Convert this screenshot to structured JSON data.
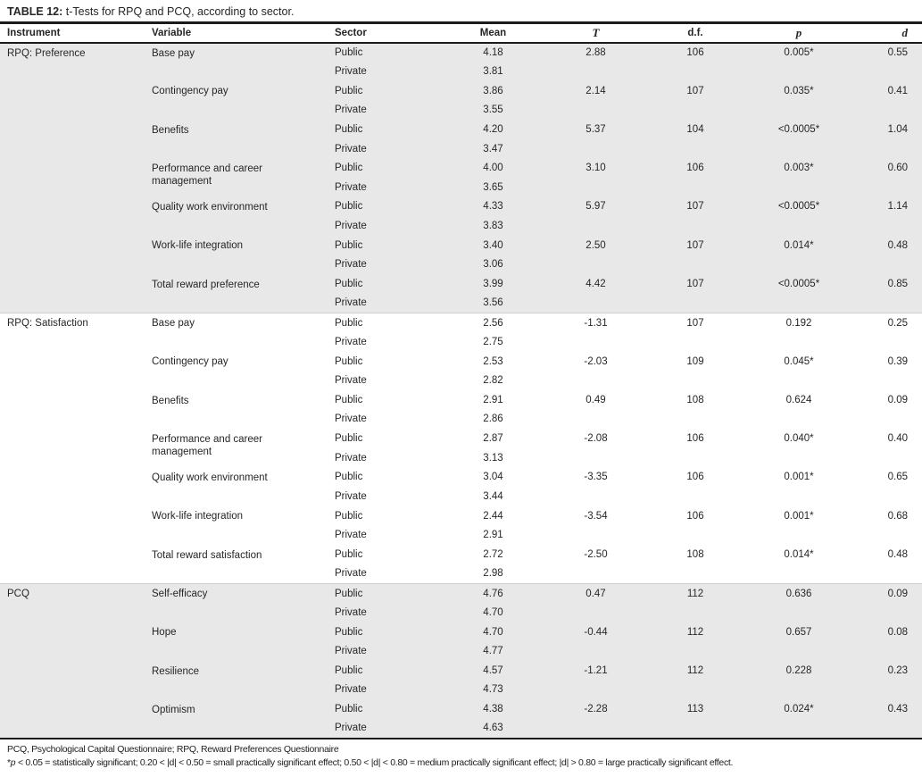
{
  "title": {
    "bold": "TABLE 12:",
    "rest": " t-Tests for RPQ and PCQ, according to sector."
  },
  "columns": {
    "instrument": "Instrument",
    "variable": "Variable",
    "sector": "Sector",
    "mean": "Mean",
    "t": "T",
    "df": "d.f.",
    "p": "p",
    "d": "d"
  },
  "sector_labels": {
    "public": "Public",
    "private": "Private"
  },
  "sections": [
    {
      "instrument": "RPQ: Preference",
      "shaded": true,
      "variables": [
        {
          "name": "Base pay",
          "public": {
            "mean": "4.18",
            "t": "2.88",
            "df": "106",
            "p": "0.005*",
            "d": "0.55"
          },
          "private": {
            "mean": "3.81"
          }
        },
        {
          "name": "Contingency pay",
          "public": {
            "mean": "3.86",
            "t": "2.14",
            "df": "107",
            "p": "0.035*",
            "d": "0.41"
          },
          "private": {
            "mean": "3.55"
          }
        },
        {
          "name": "Benefits",
          "public": {
            "mean": "4.20",
            "t": "5.37",
            "df": "104",
            "p": "<0.0005*",
            "d": "1.04"
          },
          "private": {
            "mean": "3.47"
          }
        },
        {
          "name": "Performance and career management",
          "public": {
            "mean": "4.00",
            "t": "3.10",
            "df": "106",
            "p": "0.003*",
            "d": "0.60"
          },
          "private": {
            "mean": "3.65"
          }
        },
        {
          "name": "Quality work environment",
          "public": {
            "mean": "4.33",
            "t": "5.97",
            "df": "107",
            "p": "<0.0005*",
            "d": "1.14"
          },
          "private": {
            "mean": "3.83"
          }
        },
        {
          "name": "Work-life integration",
          "public": {
            "mean": "3.40",
            "t": "2.50",
            "df": "107",
            "p": "0.014*",
            "d": "0.48"
          },
          "private": {
            "mean": "3.06"
          }
        },
        {
          "name": "Total reward preference",
          "public": {
            "mean": "3.99",
            "t": "4.42",
            "df": "107",
            "p": "<0.0005*",
            "d": "0.85"
          },
          "private": {
            "mean": "3.56"
          }
        }
      ]
    },
    {
      "instrument": "RPQ: Satisfaction",
      "shaded": false,
      "variables": [
        {
          "name": "Base pay",
          "public": {
            "mean": "2.56",
            "t": "-1.31",
            "df": "107",
            "p": "0.192",
            "d": "0.25"
          },
          "private": {
            "mean": "2.75"
          }
        },
        {
          "name": "Contingency pay",
          "public": {
            "mean": "2.53",
            "t": "-2.03",
            "df": "109",
            "p": "0.045*",
            "d": "0.39"
          },
          "private": {
            "mean": "2.82"
          }
        },
        {
          "name": "Benefits",
          "public": {
            "mean": "2.91",
            "t": "0.49",
            "df": "108",
            "p": "0.624",
            "d": "0.09"
          },
          "private": {
            "mean": "2.86"
          }
        },
        {
          "name": "Performance and career management",
          "public": {
            "mean": "2.87",
            "t": "-2.08",
            "df": "106",
            "p": "0.040*",
            "d": "0.40"
          },
          "private": {
            "mean": "3.13"
          }
        },
        {
          "name": "Quality work environment",
          "public": {
            "mean": "3.04",
            "t": "-3.35",
            "df": "106",
            "p": "0.001*",
            "d": "0.65"
          },
          "private": {
            "mean": "3.44"
          }
        },
        {
          "name": "Work-life integration",
          "public": {
            "mean": "2.44",
            "t": "-3.54",
            "df": "106",
            "p": "0.001*",
            "d": "0.68"
          },
          "private": {
            "mean": "2.91"
          }
        },
        {
          "name": "Total reward satisfaction",
          "public": {
            "mean": "2.72",
            "t": "-2.50",
            "df": "108",
            "p": "0.014*",
            "d": "0.48"
          },
          "private": {
            "mean": "2.98"
          }
        }
      ]
    },
    {
      "instrument": "PCQ",
      "shaded": true,
      "variables": [
        {
          "name": "Self-efficacy",
          "public": {
            "mean": "4.76",
            "t": "0.47",
            "df": "112",
            "p": "0.636",
            "d": "0.09"
          },
          "private": {
            "mean": "4.70"
          }
        },
        {
          "name": "Hope",
          "public": {
            "mean": "4.70",
            "t": "-0.44",
            "df": "112",
            "p": "0.657",
            "d": "0.08"
          },
          "private": {
            "mean": "4.77"
          }
        },
        {
          "name": "Resilience",
          "public": {
            "mean": "4.57",
            "t": "-1.21",
            "df": "112",
            "p": "0.228",
            "d": "0.23"
          },
          "private": {
            "mean": "4.73"
          }
        },
        {
          "name": "Optimism",
          "public": {
            "mean": "4.38",
            "t": "-2.28",
            "df": "113",
            "p": "0.024*",
            "d": "0.43"
          },
          "private": {
            "mean": "4.63"
          }
        }
      ]
    }
  ],
  "footnotes": {
    "line1": "PCQ, Psychological Capital Questionnaire; RPQ, Reward Preferences Questionnaire",
    "line2_star": "*",
    "line2_italic": "p",
    "line2_rest": " < 0.05 = statistically significant; 0.20 < |d| < 0.50 = small practically significant effect; 0.50 < |d| < 0.80 = medium practically significant effect; |d| > 0.80 = large practically significant effect."
  },
  "colors": {
    "shaded_row": "#e8e8e8",
    "rule": "#1b1b1b",
    "section_divider": "#cfcfcf",
    "text": "#262626"
  }
}
